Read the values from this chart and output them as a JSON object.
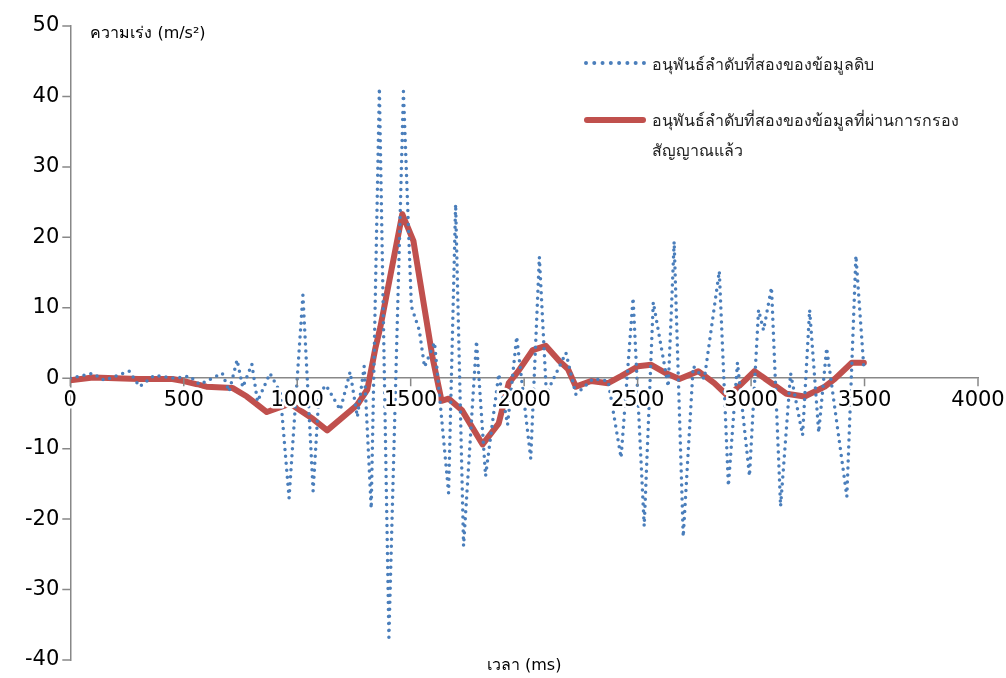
{
  "chart_data": {
    "type": "line",
    "xlabel": "เวลา (ms)",
    "ylabel": "ความเร่ง (m/s²)",
    "xlim": [
      0,
      4000
    ],
    "xticks": [
      0,
      500,
      1000,
      1500,
      2000,
      2500,
      3000,
      3500,
      4000
    ],
    "ylim": [
      -40,
      50
    ],
    "yticks": [
      -40,
      -30,
      -20,
      -10,
      0,
      10,
      20,
      30,
      40,
      50
    ],
    "grid": false,
    "legend": "top right",
    "marker": "none",
    "series": [
      {
        "name": "อนุพันธ์ลำดับที่สองของข้อมูลดิบ",
        "color": "#4a7ebb",
        "line_style": "dotted",
        "x": [
          0,
          97,
          150,
          260,
          305,
          370,
          460,
          525,
          570,
          670,
          700,
          735,
          760,
          800,
          825,
          880,
          925,
          964,
          1025,
          1070,
          1096,
          1127,
          1190,
          1233,
          1265,
          1295,
          1326,
          1362,
          1404,
          1468,
          1503,
          1538,
          1561,
          1605,
          1667,
          1698,
          1733,
          1790,
          1830,
          1888,
          1927,
          1967,
          2029,
          2067,
          2098,
          2184,
          2228,
          2303,
          2370,
          2427,
          2480,
          2529,
          2569,
          2635,
          2661,
          2701,
          2745,
          2794,
          2860,
          2900,
          2940,
          2993,
          3033,
          3055,
          3090,
          3130,
          3174,
          3227,
          3258,
          3298,
          3333,
          3422,
          3462,
          3497
        ],
        "values": [
          0,
          0.7,
          -0.3,
          1,
          -1.2,
          0.4,
          0,
          0.3,
          -0.9,
          0.7,
          -1.9,
          2.6,
          -1.3,
          2,
          -3.3,
          0.7,
          -2,
          -17,
          11.8,
          -16,
          -2.2,
          -1,
          -4.5,
          0.9,
          -5.5,
          1.7,
          -18.5,
          41.2,
          -36.8,
          40.7,
          10.2,
          6.8,
          1.6,
          5.1,
          -16.3,
          24.7,
          -23.8,
          5.3,
          -13.9,
          0.6,
          -6.6,
          5.9,
          -11.4,
          17.2,
          -2.2,
          3.6,
          -2.3,
          -0.1,
          -0.4,
          -11.3,
          11.4,
          -21,
          10.8,
          -1.2,
          19.4,
          -22.5,
          1.7,
          -0.1,
          15.2,
          -15.3,
          2.2,
          -13.9,
          9.7,
          6.8,
          12.9,
          -18.2,
          0.7,
          -8.1,
          9.7,
          -7.7,
          4.3,
          -16.8,
          17.4,
          1.4
        ]
      },
      {
        "name": "อนุพันธ์ลำดับที่สองของข้อมูลที่ผ่านการกรองสัญญาณแล้ว",
        "color": "#c0504d",
        "line_style": "solid",
        "x": [
          0,
          100,
          300,
          450,
          500,
          600,
          716,
          778,
          866,
          968,
          1070,
          1132,
          1264,
          1309,
          1344,
          1366,
          1463,
          1512,
          1596,
          1636,
          1667,
          1725,
          1817,
          1888,
          1932,
          1972,
          2038,
          2095,
          2153,
          2193,
          2228,
          2295,
          2370,
          2427,
          2502,
          2560,
          2626,
          2684,
          2767,
          2838,
          2900,
          3015,
          3156,
          3236,
          3325,
          3369,
          3444,
          3497
        ],
        "values": [
          -0.3,
          0.1,
          -0.1,
          -0.1,
          -0.4,
          -1.2,
          -1.4,
          -2.6,
          -4.8,
          -3.6,
          -5.8,
          -7.4,
          -3.8,
          -1.6,
          4.2,
          7.2,
          23.3,
          19.5,
          3,
          -3.2,
          -2.9,
          -4.5,
          -9.4,
          -6.4,
          -0.7,
          0.9,
          4,
          4.6,
          2.5,
          1.3,
          -1.2,
          -0.4,
          -0.7,
          0.3,
          1.7,
          1.9,
          0.7,
          -0.1,
          1,
          -0.7,
          -2.6,
          1,
          -2.2,
          -2.6,
          -1.2,
          -0.1,
          2.2,
          2.2
        ]
      }
    ]
  }
}
